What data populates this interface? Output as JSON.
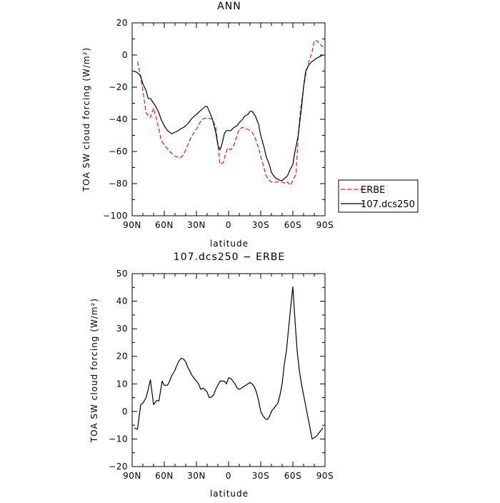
{
  "chart_data": [
    {
      "type": "line",
      "title": "ANN",
      "xlabel": "latitude",
      "ylabel": "TOA SW cloud forcing (W/m²)",
      "x_tick_labels": [
        "90N",
        "60N",
        "30N",
        "0",
        "30S",
        "60S",
        "90S"
      ],
      "x_tick_values": [
        90,
        60,
        30,
        0,
        -30,
        -60,
        -90
      ],
      "xlim": [
        90,
        -90
      ],
      "ylim": [
        -100,
        20
      ],
      "y_ticks": [
        -100,
        -80,
        -60,
        -40,
        -20,
        0,
        20
      ],
      "grid": false,
      "legend_placement": "right, outside plot",
      "series": [
        {
          "name": "ERBE",
          "color": "#e41a1c",
          "dash": "dashed",
          "x": [
            85,
            82,
            80,
            77,
            73,
            70,
            68,
            65,
            63,
            60,
            55,
            50,
            45,
            42,
            38,
            35,
            30,
            25,
            20,
            15,
            12,
            10,
            8,
            5,
            3,
            1,
            0,
            -2,
            -5,
            -8,
            -10,
            -13,
            -17,
            -20,
            -22,
            -25,
            -28,
            -30,
            -33,
            -35,
            -38,
            -40,
            -43,
            -45,
            -48,
            -50,
            -53,
            -55,
            -58,
            -60,
            -63,
            -65,
            -67,
            -70,
            -72,
            -75,
            -78,
            -80,
            -82,
            -85,
            -88
          ],
          "y": [
            -4,
            -14,
            -22,
            -36,
            -39,
            -33,
            -38,
            -46,
            -53,
            -56,
            -60,
            -63,
            -64,
            -62,
            -56,
            -51,
            -46,
            -40,
            -39,
            -40,
            -45,
            -55,
            -68,
            -67,
            -62,
            -58,
            -58,
            -59,
            -56,
            -50,
            -46,
            -45,
            -46,
            -47,
            -48,
            -52,
            -58,
            -63,
            -70,
            -75,
            -78,
            -79,
            -79,
            -79,
            -79,
            -79,
            -80,
            -79,
            -81,
            -78,
            -74,
            -50,
            -35,
            -20,
            -12,
            -4,
            2,
            9,
            9,
            7,
            5
          ]
        },
        {
          "name": "107.dcs250",
          "color": "#000000",
          "dash": "solid",
          "x": [
            88,
            85,
            82,
            80,
            77,
            75,
            73,
            70,
            68,
            65,
            63,
            60,
            57,
            55,
            53,
            50,
            47,
            45,
            42,
            40,
            37,
            35,
            32,
            30,
            27,
            25,
            22,
            20,
            18,
            15,
            12,
            10,
            8,
            6,
            4,
            2,
            0,
            -2,
            -5,
            -8,
            -10,
            -13,
            -15,
            -18,
            -20,
            -22,
            -25,
            -28,
            -30,
            -33,
            -35,
            -38,
            -40,
            -43,
            -45,
            -48,
            -50,
            -52,
            -55,
            -57,
            -60,
            -62,
            -65,
            -68,
            -70,
            -72,
            -75,
            -78,
            -80,
            -82,
            -85,
            -88
          ],
          "y": [
            -10,
            -11,
            -13,
            -18,
            -22,
            -27,
            -27,
            -30,
            -32,
            -36,
            -40,
            -44,
            -47,
            -48,
            -49,
            -48,
            -47,
            -46,
            -45,
            -44,
            -42,
            -40,
            -38,
            -37,
            -35,
            -34,
            -32,
            -32,
            -35,
            -40,
            -48,
            -56,
            -59,
            -55,
            -49,
            -47,
            -47,
            -47,
            -45,
            -44,
            -42,
            -40,
            -38,
            -37,
            -35,
            -35,
            -38,
            -43,
            -50,
            -57,
            -63,
            -68,
            -73,
            -76,
            -77,
            -78,
            -78,
            -77,
            -75,
            -72,
            -68,
            -60,
            -50,
            -33,
            -20,
            -10,
            -6,
            -4,
            -3,
            -2,
            -1,
            0
          ]
        }
      ]
    },
    {
      "type": "line",
      "title": "107.dcs250 − ERBE",
      "xlabel": "latitude",
      "ylabel": "TOA SW cloud forcing (W/m²)",
      "x_tick_labels": [
        "90N",
        "60N",
        "30N",
        "0",
        "30S",
        "60S",
        "90S"
      ],
      "x_tick_values": [
        90,
        60,
        30,
        0,
        -30,
        -60,
        -90
      ],
      "xlim": [
        90,
        -90
      ],
      "ylim": [
        -20,
        50
      ],
      "y_ticks": [
        -20,
        -10,
        0,
        10,
        20,
        30,
        40,
        50
      ],
      "grid": false,
      "series": [
        {
          "color": "#000000",
          "dash": "solid",
          "x": [
            88,
            85,
            82,
            80,
            77,
            75,
            73,
            70,
            67,
            65,
            62,
            60,
            57,
            55,
            53,
            50,
            48,
            46,
            44,
            42,
            40,
            38,
            36,
            34,
            32,
            30,
            28,
            26,
            24,
            22,
            20,
            18,
            16,
            14,
            12,
            10,
            8,
            6,
            4,
            2,
            0,
            -2,
            -4,
            -6,
            -8,
            -10,
            -12,
            -14,
            -16,
            -18,
            -20,
            -22,
            -24,
            -26,
            -28,
            -30,
            -32,
            -34,
            -36,
            -38,
            -40,
            -42,
            -44,
            -46,
            -48,
            -50,
            -52,
            -54,
            -56,
            -58,
            -60,
            -62,
            -64,
            -66,
            -68,
            -70,
            -72,
            -74,
            -76,
            -78,
            -80,
            -82,
            -84,
            -86,
            -88
          ],
          "y": [
            -6,
            -6.5,
            2.5,
            3,
            5,
            8,
            11.5,
            2.5,
            4,
            3.8,
            11,
            9.5,
            9.5,
            11,
            13,
            15,
            17,
            18.5,
            19.3,
            19,
            18,
            16,
            14.5,
            13,
            12,
            11,
            10,
            8,
            8.5,
            8,
            7,
            5,
            5.2,
            6,
            8,
            9.5,
            11,
            11,
            11,
            10,
            12.2,
            12,
            11,
            10,
            8.5,
            8,
            8.5,
            9,
            9.5,
            10,
            10.5,
            10,
            9,
            7,
            4,
            0,
            -1.5,
            -2.5,
            -3,
            -2,
            0,
            1,
            2,
            3,
            6,
            10,
            17,
            22,
            30,
            38,
            45.2,
            33,
            22,
            15,
            10,
            6,
            2,
            -2,
            -6,
            -10,
            -9.5,
            -9,
            -8,
            -7,
            -6
          ]
        }
      ]
    }
  ]
}
